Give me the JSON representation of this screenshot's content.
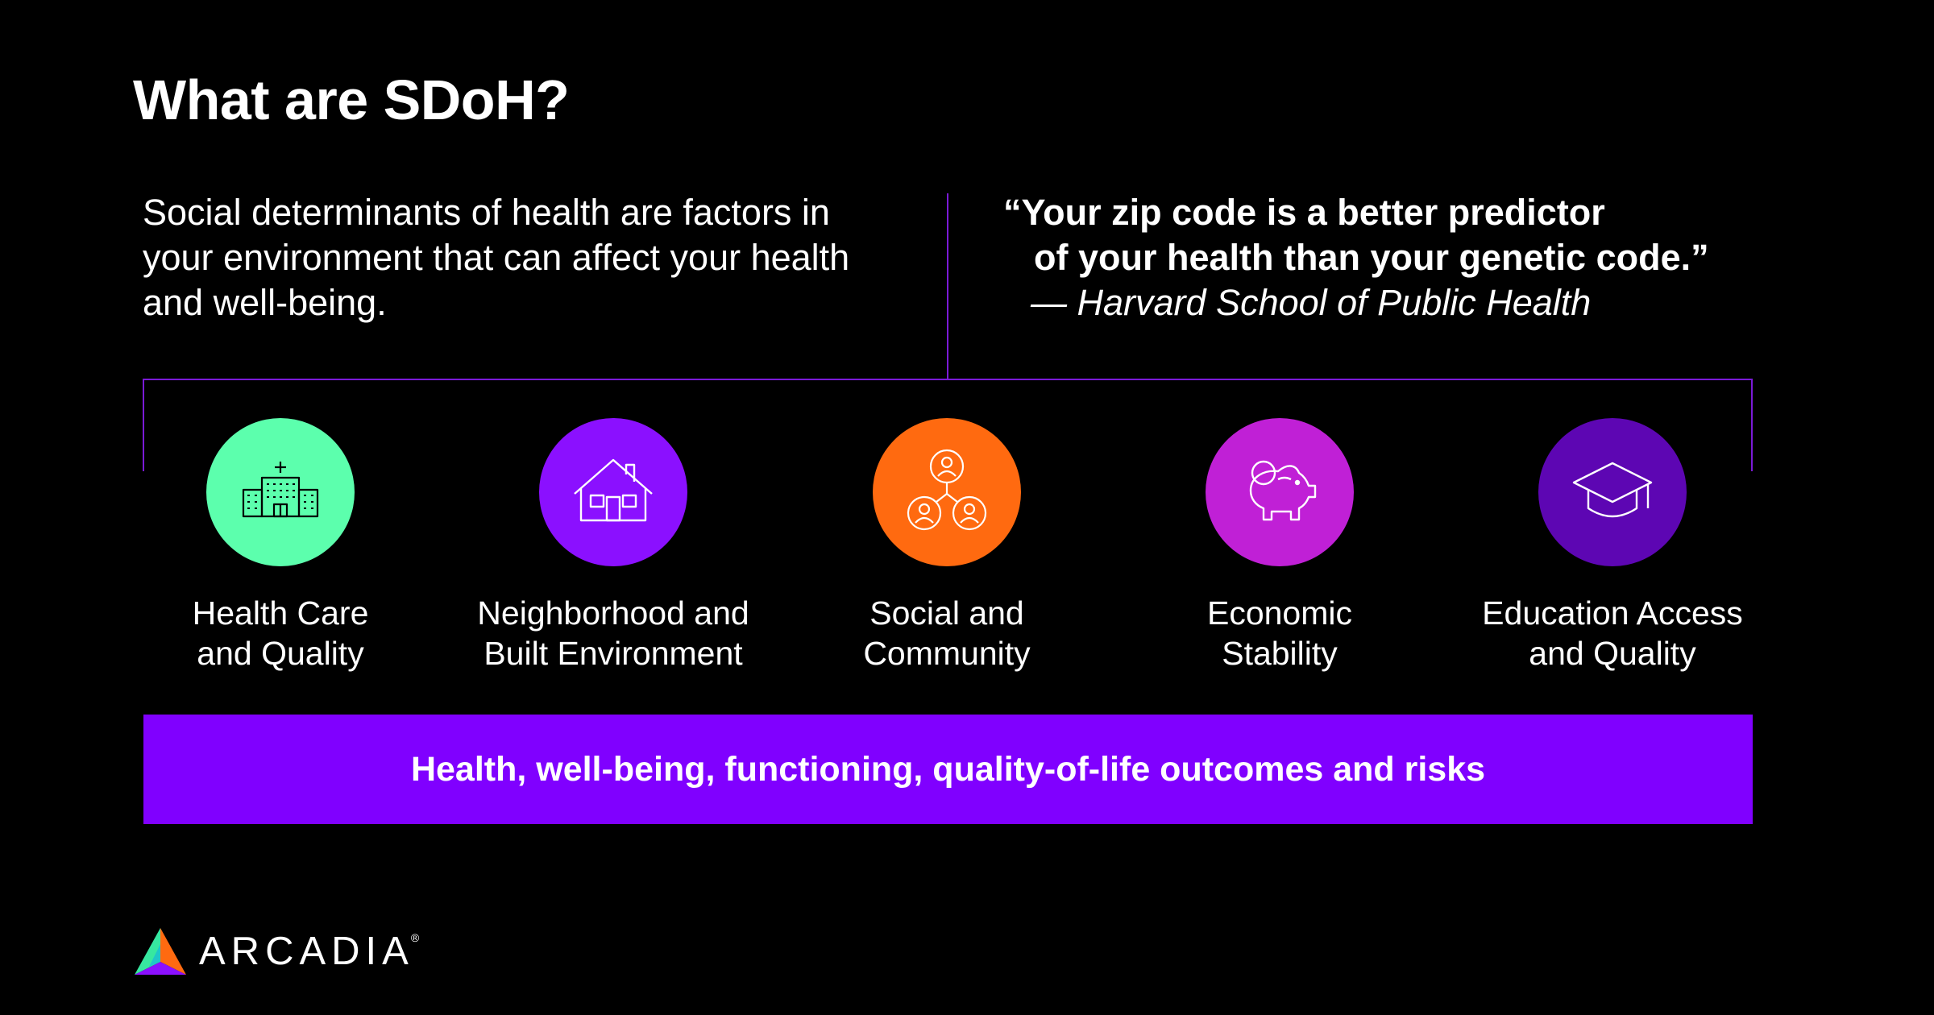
{
  "title": "What are SDoH?",
  "definition": "Social determinants of health are factors in your environment that can affect your health and well-being.",
  "quote": {
    "line1": "“Your zip code is a better predictor",
    "line2": "of your health than your genetic code.”",
    "attribution": "— Harvard School of Public Health"
  },
  "categories": [
    {
      "line1": "Health Care",
      "line2": "and Quality",
      "icon": "hospital-icon",
      "color": "#5cffad"
    },
    {
      "line1": "Neighborhood and",
      "line2": "Built Environment",
      "icon": "house-icon",
      "color": "#8b10ff"
    },
    {
      "line1": "Social and",
      "line2": "Community",
      "icon": "community-icon",
      "color": "#ff6a10"
    },
    {
      "line1": "Economic",
      "line2": "Stability",
      "icon": "piggy-bank-icon",
      "color": "#c020d6"
    },
    {
      "line1": "Education Access",
      "line2": "and Quality",
      "icon": "graduation-cap-icon",
      "color": "#5d06b3"
    }
  ],
  "banner": "Health, well-being, functioning, quality-of-life outcomes and risks",
  "logo": {
    "text": "ARCADIA",
    "reg": "®"
  },
  "colors": {
    "background": "#000000",
    "accent": "#8000ff",
    "line": "#7a1ad6"
  }
}
